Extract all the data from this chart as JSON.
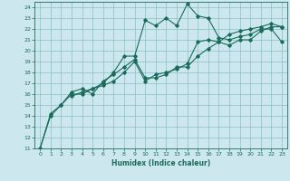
{
  "xlabel": "Humidex (Indice chaleur)",
  "background_color": "#cce8ee",
  "line_color": "#1a6b5a",
  "grid_color": "#8bbfc8",
  "xlim": [
    -0.5,
    23.5
  ],
  "ylim": [
    11,
    24.5
  ],
  "yticks": [
    11,
    12,
    13,
    14,
    15,
    16,
    17,
    18,
    19,
    20,
    21,
    22,
    23,
    24
  ],
  "xticks": [
    0,
    1,
    2,
    3,
    4,
    5,
    6,
    7,
    8,
    9,
    10,
    11,
    12,
    13,
    14,
    15,
    16,
    17,
    18,
    19,
    20,
    21,
    22,
    23
  ],
  "line1_x": [
    0,
    1,
    2,
    3,
    4,
    5,
    6,
    7,
    8,
    9,
    10,
    11,
    12,
    13,
    14,
    15,
    16,
    17,
    18,
    19,
    20,
    21,
    22,
    23
  ],
  "line1_y": [
    11.0,
    14.0,
    15.0,
    16.0,
    16.0,
    16.5,
    17.0,
    18.0,
    19.5,
    19.5,
    22.8,
    22.3,
    23.0,
    22.3,
    24.3,
    23.2,
    23.0,
    21.2,
    21.0,
    21.3,
    21.5,
    22.0,
    22.0,
    20.8
  ],
  "line2_x": [
    0,
    1,
    2,
    3,
    4,
    5,
    6,
    7,
    8,
    9,
    10,
    11,
    12,
    13,
    14,
    15,
    16,
    17,
    18,
    19,
    20,
    21,
    22,
    23
  ],
  "line2_y": [
    11.0,
    14.2,
    15.0,
    16.2,
    16.5,
    16.0,
    17.2,
    17.8,
    18.5,
    19.2,
    17.5,
    17.5,
    17.8,
    18.5,
    18.5,
    19.5,
    20.2,
    20.8,
    21.5,
    21.8,
    22.0,
    22.2,
    22.5,
    22.2
  ],
  "line3_x": [
    3,
    4,
    5,
    6,
    7,
    8,
    9,
    10,
    11,
    12,
    13,
    14,
    15,
    16,
    17,
    18,
    19,
    20,
    21,
    22,
    23
  ],
  "line3_y": [
    15.8,
    16.2,
    16.5,
    16.8,
    17.2,
    18.0,
    19.0,
    17.2,
    17.8,
    18.0,
    18.3,
    18.8,
    20.8,
    21.0,
    20.8,
    20.5,
    21.0,
    21.0,
    21.8,
    22.2,
    22.2
  ]
}
